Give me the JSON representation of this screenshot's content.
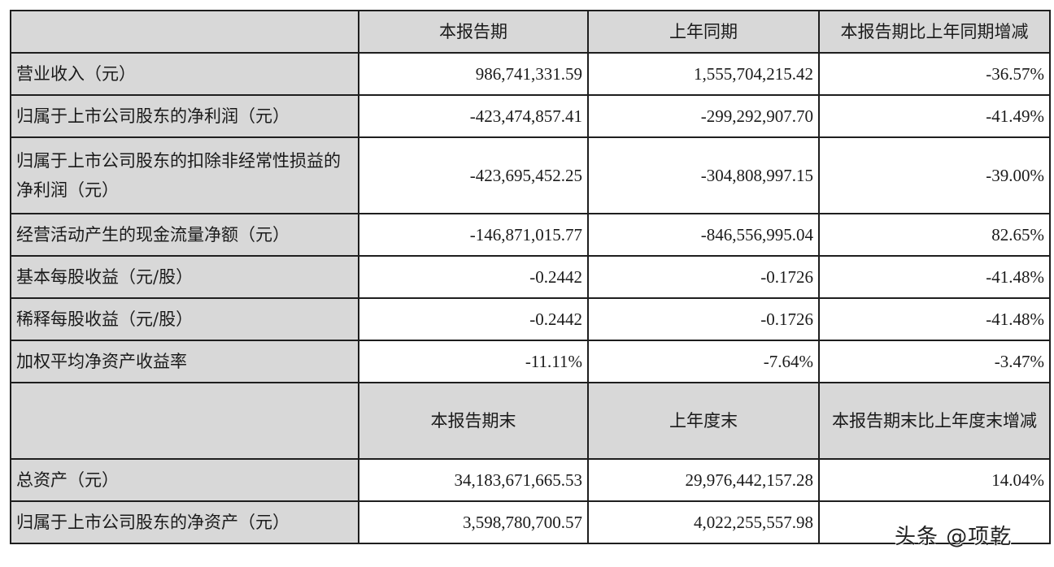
{
  "table": {
    "section1_headers": [
      "",
      "本报告期",
      "上年同期",
      "本报告期比上年同期增减"
    ],
    "section1_rows": [
      {
        "label": "营业收入（元）",
        "current": "986,741,331.59",
        "prior": "1,555,704,215.42",
        "change": "-36.57%"
      },
      {
        "label": "归属于上市公司股东的净利润（元）",
        "current": "-423,474,857.41",
        "prior": "-299,292,907.70",
        "change": "-41.49%"
      },
      {
        "label": "归属于上市公司股东的扣除非经常性损益的净利润（元）",
        "current": "-423,695,452.25",
        "prior": "-304,808,997.15",
        "change": "-39.00%"
      },
      {
        "label": "经营活动产生的现金流量净额（元）",
        "current": "-146,871,015.77",
        "prior": "-846,556,995.04",
        "change": "82.65%"
      },
      {
        "label": "基本每股收益（元/股）",
        "current": "-0.2442",
        "prior": "-0.1726",
        "change": "-41.48%"
      },
      {
        "label": "稀释每股收益（元/股）",
        "current": "-0.2442",
        "prior": "-0.1726",
        "change": "-41.48%"
      },
      {
        "label": "加权平均净资产收益率",
        "current": "-11.11%",
        "prior": "-7.64%",
        "change": "-3.47%"
      }
    ],
    "section2_headers": [
      "",
      "本报告期末",
      "上年度末",
      "本报告期末比上年度末增减"
    ],
    "section2_rows": [
      {
        "label": "总资产（元）",
        "current": "34,183,671,665.53",
        "prior": "29,976,442,157.28",
        "change": "14.04%"
      },
      {
        "label": "归属于上市公司股东的净资产（元）",
        "current": "3,598,780,700.57",
        "prior": "4,022,255,557.98",
        "change": ""
      }
    ]
  },
  "watermark": "头条 @项乾"
}
